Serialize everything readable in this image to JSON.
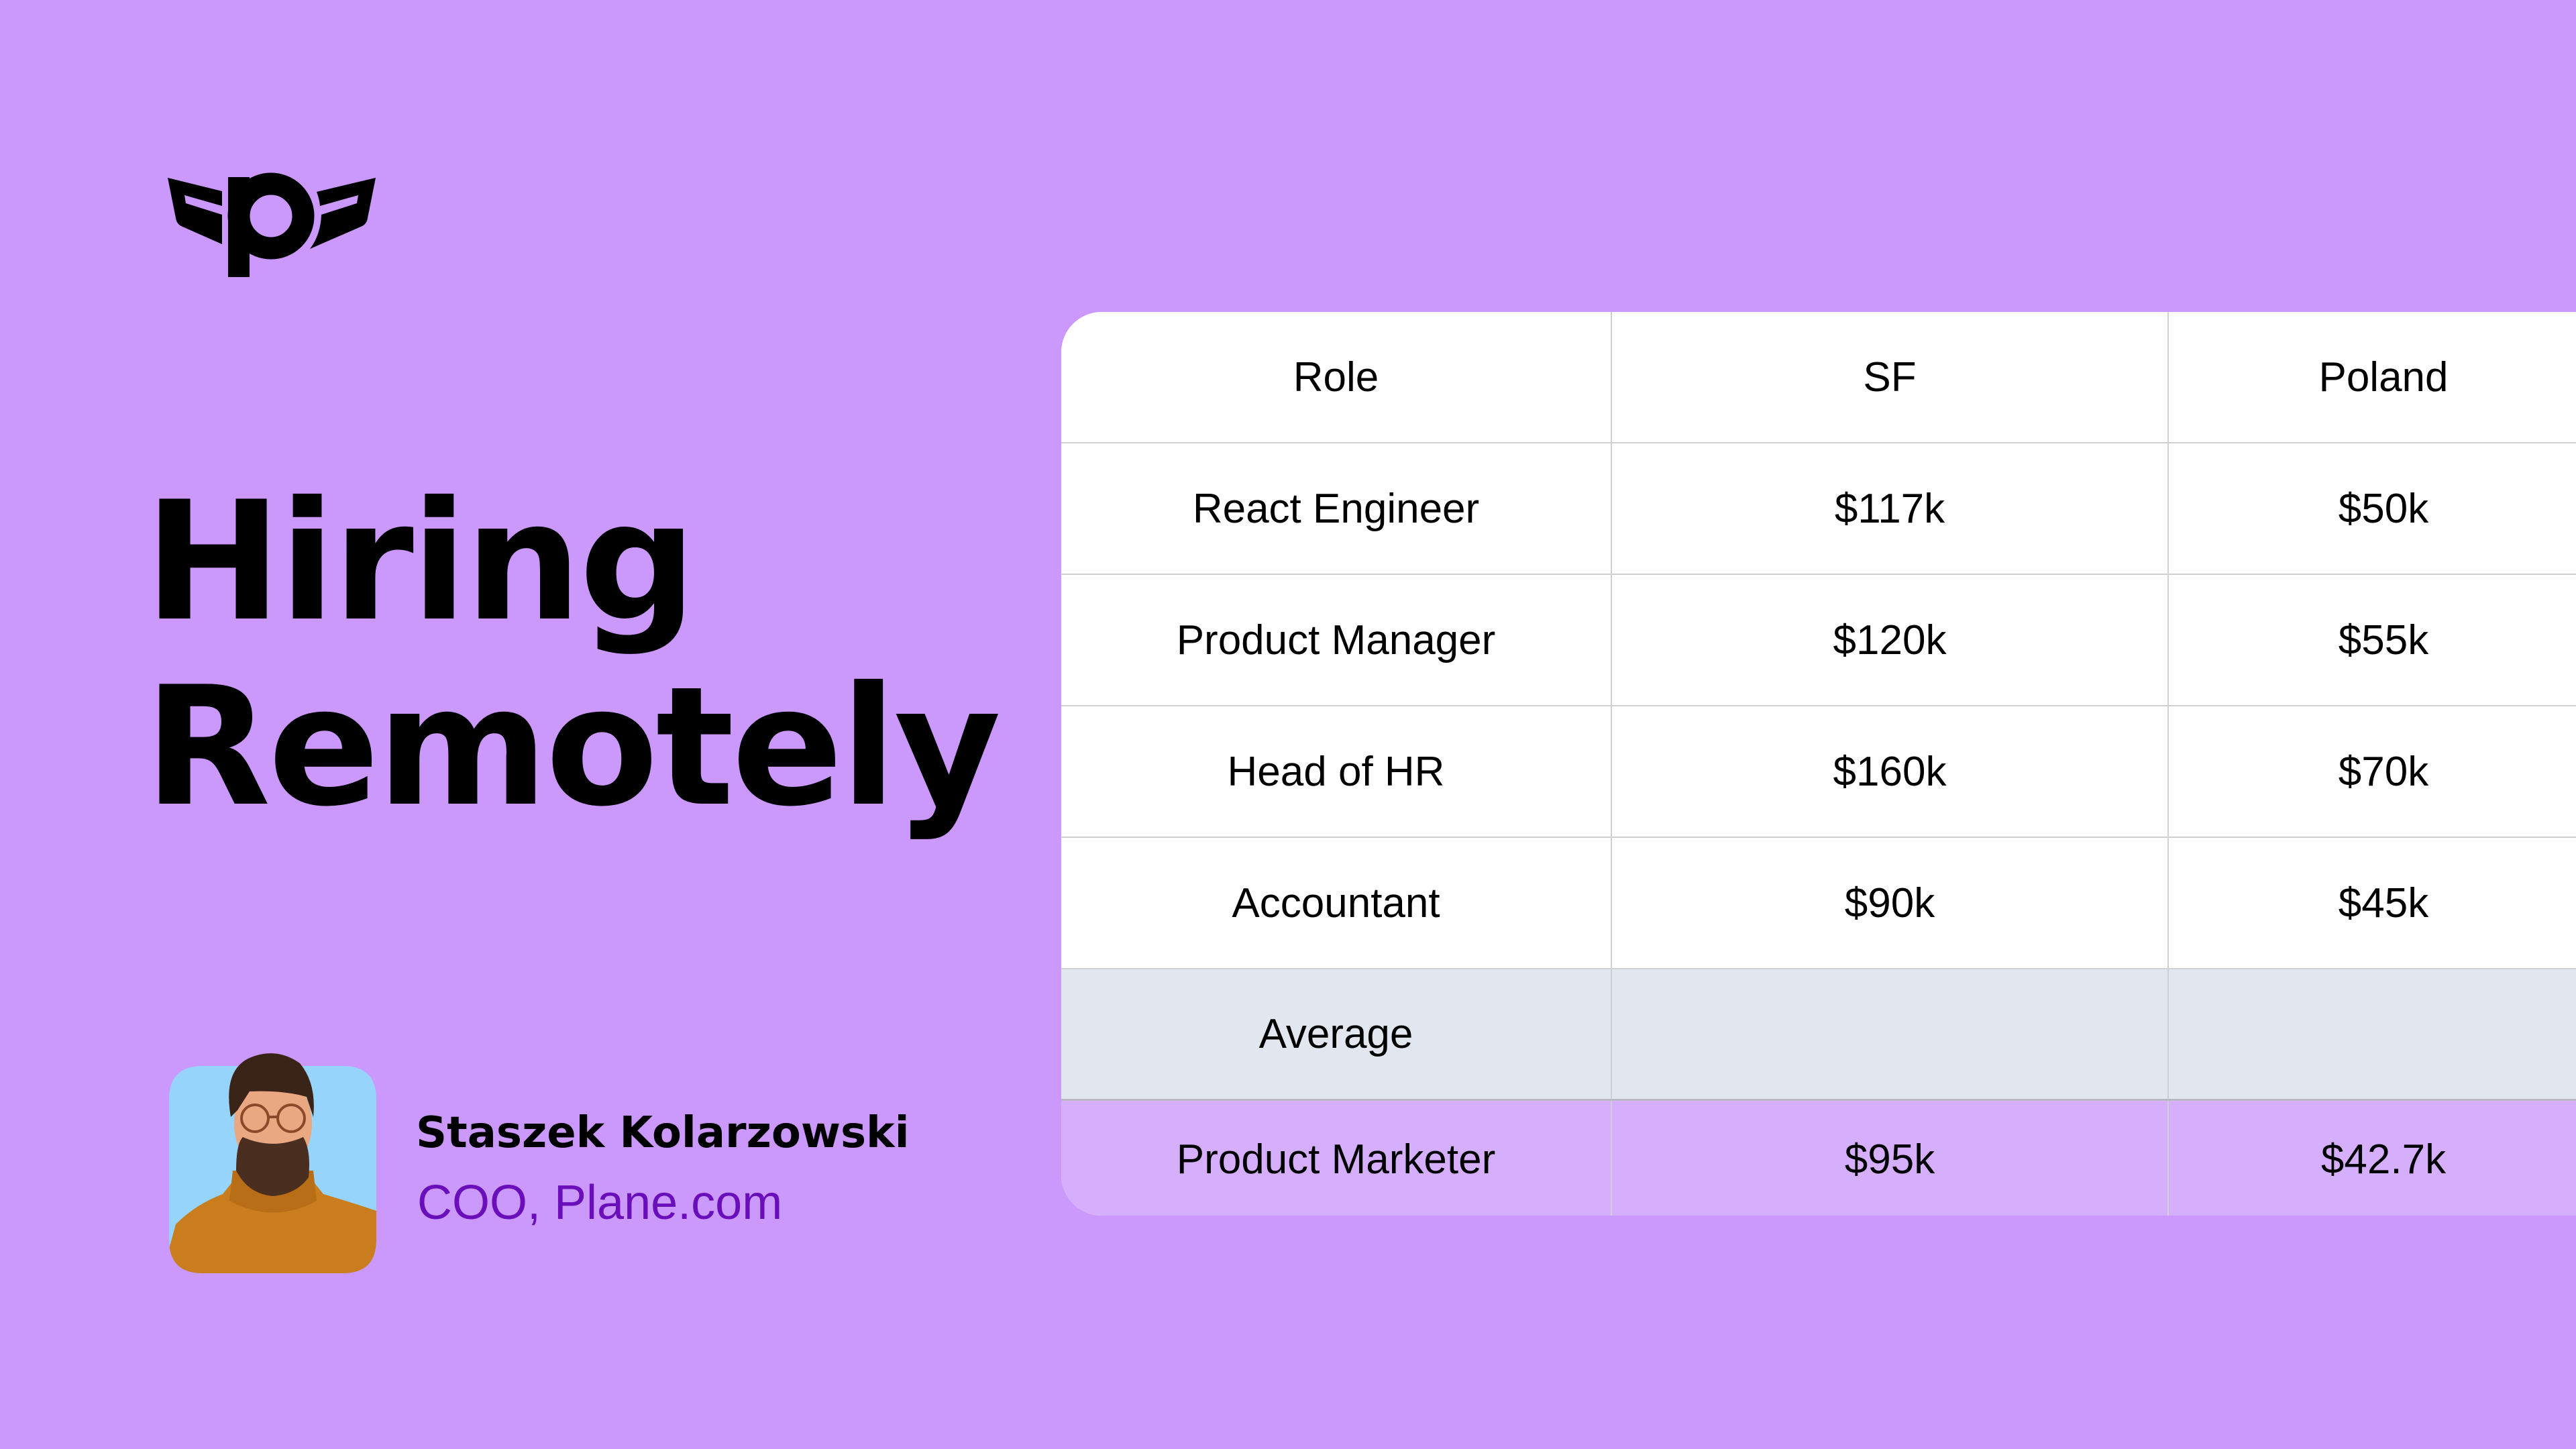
{
  "brand": {
    "logo_icon": "plane-winged-p-logo",
    "logo_text": "p"
  },
  "headline": {
    "line1": "Hiring",
    "line2": "Remotely"
  },
  "author": {
    "name": "Staszek Kolarzowski",
    "role": "COO, Plane.com",
    "avatar": "portrait-photo"
  },
  "colors": {
    "background": "#cb99fc",
    "role_text": "#6a0dba",
    "average_row": "#e2e6ee",
    "highlight_row": "#d5aefc"
  },
  "table": {
    "columns": [
      "Role",
      "SF",
      "Poland"
    ],
    "rows": [
      [
        "React Engineer",
        "$117k",
        "$50k"
      ],
      [
        "Product Manager",
        "$120k",
        "$55k"
      ],
      [
        "Head of HR",
        "$160k",
        "$70k"
      ],
      [
        "Accountant",
        "$90k",
        "$45k"
      ]
    ],
    "average": [
      "Average",
      "",
      ""
    ],
    "highlight": [
      "Product Marketer",
      "$95k",
      "$42.7k"
    ]
  }
}
